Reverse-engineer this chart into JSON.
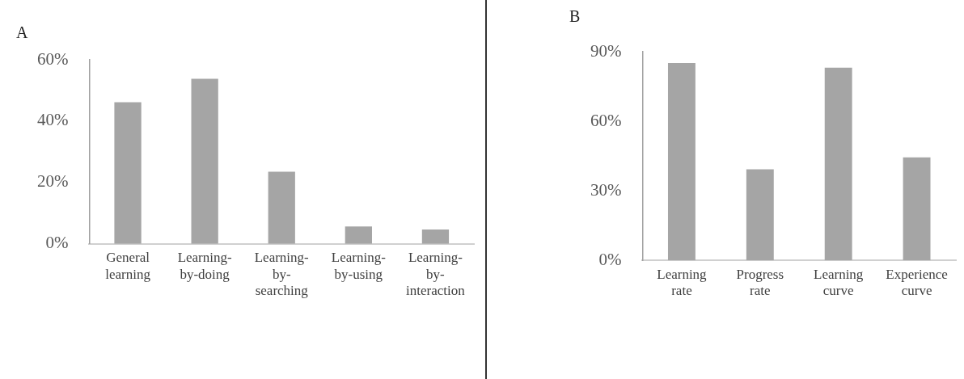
{
  "chart_data": [
    {
      "type": "bar",
      "title": "A",
      "categories": [
        "General learning",
        "Learning-by-doing",
        "Learning-by-searching",
        "Learning-by-using",
        "Learning-by-interaction"
      ],
      "values": [
        46.2,
        53.8,
        23.5,
        5.7,
        4.7
      ],
      "color": "#a5a5a5",
      "ylim": [
        0,
        60
      ],
      "yticks": [
        {
          "value": 0,
          "label": "0%"
        },
        {
          "value": 20,
          "label": "20%"
        },
        {
          "value": 40,
          "label": "40%"
        },
        {
          "value": 60,
          "label": "60%"
        }
      ],
      "grid": false,
      "legend": false
    },
    {
      "type": "bar",
      "title": "B",
      "categories": [
        "Learning rate",
        "Progress rate",
        "Learning curve",
        "Experience curve"
      ],
      "values": [
        85.1,
        39.3,
        83.1,
        44.4
      ],
      "color": "#a5a5a5",
      "ylim": [
        0,
        90
      ],
      "yticks": [
        {
          "value": 0,
          "label": "0%"
        },
        {
          "value": 30,
          "label": "30%"
        },
        {
          "value": 60,
          "label": "60%"
        },
        {
          "value": 90,
          "label": "90%"
        }
      ],
      "grid": false,
      "legend": false
    }
  ]
}
